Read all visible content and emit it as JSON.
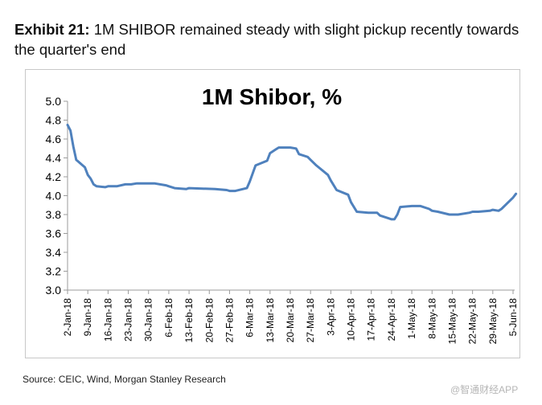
{
  "exhibit": {
    "label": "Exhibit 21:",
    "title": "1M SHIBOR remained steady with slight pickup recently towards the quarter's end"
  },
  "source": "Source: CEIC, Wind, Morgan Stanley Research",
  "watermark": "@智通财经APP",
  "colors": {
    "line": "#4f81bd",
    "axis": "#9b9b9b",
    "frame": "#c8c8c8"
  },
  "chart_data": {
    "type": "line",
    "title": "1M Shibor, %",
    "xlabel": "",
    "ylabel": "",
    "ylim": [
      3.0,
      5.0
    ],
    "yticks": [
      3.0,
      3.2,
      3.4,
      3.6,
      3.8,
      4.0,
      4.2,
      4.4,
      4.6,
      4.8,
      5.0
    ],
    "grid": false,
    "legend": "none",
    "xtick_labels": [
      "2-Jan-18",
      "9-Jan-18",
      "16-Jan-18",
      "23-Jan-18",
      "30-Jan-18",
      "6-Feb-18",
      "13-Feb-18",
      "20-Feb-18",
      "27-Feb-18",
      "6-Mar-18",
      "13-Mar-18",
      "20-Mar-18",
      "27-Mar-18",
      "3-Apr-18",
      "10-Apr-18",
      "17-Apr-18",
      "24-Apr-18",
      "1-May-18",
      "8-May-18",
      "15-May-18",
      "22-May-18",
      "29-May-18",
      "5-Jun-18"
    ],
    "x": [
      "2018-01-02",
      "2018-01-03",
      "2018-01-04",
      "2018-01-05",
      "2018-01-08",
      "2018-01-09",
      "2018-01-10",
      "2018-01-11",
      "2018-01-12",
      "2018-01-15",
      "2018-01-16",
      "2018-01-17",
      "2018-01-19",
      "2018-01-22",
      "2018-01-23",
      "2018-01-24",
      "2018-01-26",
      "2018-01-29",
      "2018-01-30",
      "2018-02-01",
      "2018-02-05",
      "2018-02-06",
      "2018-02-08",
      "2018-02-12",
      "2018-02-13",
      "2018-02-22",
      "2018-02-26",
      "2018-02-27",
      "2018-03-01",
      "2018-03-05",
      "2018-03-06",
      "2018-03-08",
      "2018-03-12",
      "2018-03-13",
      "2018-03-15",
      "2018-03-16",
      "2018-03-19",
      "2018-03-20",
      "2018-03-22",
      "2018-03-23",
      "2018-03-26",
      "2018-03-27",
      "2018-03-29",
      "2018-04-02",
      "2018-04-03",
      "2018-04-05",
      "2018-04-09",
      "2018-04-10",
      "2018-04-12",
      "2018-04-16",
      "2018-04-17",
      "2018-04-19",
      "2018-04-20",
      "2018-04-23",
      "2018-04-24",
      "2018-04-25",
      "2018-04-26",
      "2018-04-27",
      "2018-05-01",
      "2018-05-02",
      "2018-05-04",
      "2018-05-07",
      "2018-05-08",
      "2018-05-10",
      "2018-05-14",
      "2018-05-15",
      "2018-05-17",
      "2018-05-21",
      "2018-05-22",
      "2018-05-24",
      "2018-05-28",
      "2018-05-29",
      "2018-05-31",
      "2018-06-01",
      "2018-06-04",
      "2018-06-05",
      "2018-06-06"
    ],
    "series": [
      {
        "values": [
          4.75,
          4.69,
          4.52,
          4.38,
          4.3,
          4.22,
          4.18,
          4.12,
          4.1,
          4.09,
          4.1,
          4.1,
          4.1,
          4.12,
          4.12,
          4.12,
          4.13,
          4.13,
          4.13,
          4.13,
          4.11,
          4.1,
          4.08,
          4.07,
          4.08,
          4.07,
          4.06,
          4.05,
          4.05,
          4.08,
          4.15,
          4.32,
          4.37,
          4.45,
          4.49,
          4.51,
          4.51,
          4.51,
          4.5,
          4.44,
          4.41,
          4.38,
          4.32,
          4.22,
          4.16,
          4.06,
          4.01,
          3.93,
          3.83,
          3.82,
          3.82,
          3.82,
          3.79,
          3.76,
          3.75,
          3.75,
          3.8,
          3.88,
          3.89,
          3.89,
          3.89,
          3.86,
          3.84,
          3.83,
          3.8,
          3.8,
          3.8,
          3.82,
          3.83,
          3.83,
          3.84,
          3.85,
          3.84,
          3.86,
          3.95,
          3.98,
          4.02
        ]
      }
    ]
  }
}
